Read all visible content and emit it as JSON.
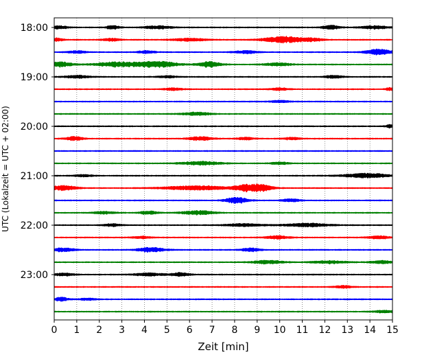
{
  "chart_data": {
    "type": "line",
    "title": "",
    "xlabel": "Zeit  [min]",
    "ylabel": "UTC (Lokalzeit = UTC + 02:00)",
    "xlim": [
      0,
      15
    ],
    "x_ticks": [
      0,
      1,
      2,
      3,
      4,
      5,
      6,
      7,
      8,
      9,
      10,
      11,
      12,
      13,
      14,
      15
    ],
    "x_tick_labels": [
      "0",
      "1",
      "2",
      "3",
      "4",
      "5",
      "6",
      "7",
      "8",
      "9",
      "10",
      "11",
      "12",
      "13",
      "14",
      "15"
    ],
    "y_tick_labels": [
      "18:00",
      "19:00",
      "20:00",
      "21:00",
      "22:00",
      "23:00"
    ],
    "grid": "vertical-dotted",
    "colors": [
      "#000000",
      "#ff0000",
      "#0000ff",
      "#008000"
    ],
    "traces": [
      {
        "start": "18:00",
        "color": "#000000",
        "bursts": [
          [
            0.2,
            0.4,
            2.0
          ],
          [
            2.6,
            0.3,
            2.6
          ],
          [
            4.6,
            0.6,
            2.2
          ],
          [
            12.3,
            0.4,
            2.8
          ],
          [
            14.2,
            0.6,
            2.2
          ]
        ]
      },
      {
        "start": "18:15",
        "color": "#ff0000",
        "bursts": [
          [
            0.1,
            0.3,
            2.4
          ],
          [
            2.5,
            0.4,
            2.0
          ],
          [
            6.0,
            0.8,
            1.8
          ],
          [
            10.2,
            0.9,
            4.6
          ],
          [
            11.5,
            0.4,
            1.8
          ]
        ]
      },
      {
        "start": "18:30",
        "color": "#0000ff",
        "bursts": [
          [
            1.0,
            0.4,
            1.8
          ],
          [
            4.1,
            0.4,
            2.0
          ],
          [
            8.5,
            0.5,
            2.0
          ],
          [
            14.4,
            0.6,
            4.0
          ]
        ]
      },
      {
        "start": "18:45",
        "color": "#008000",
        "bursts": [
          [
            0.3,
            0.5,
            3.6
          ],
          [
            2.8,
            1.0,
            3.4
          ],
          [
            4.6,
            0.9,
            4.2
          ],
          [
            6.9,
            0.5,
            4.0
          ],
          [
            9.9,
            0.6,
            2.2
          ]
        ]
      },
      {
        "start": "19:00",
        "color": "#000000",
        "bursts": [
          [
            1.0,
            0.5,
            2.2
          ],
          [
            5.0,
            0.4,
            1.6
          ],
          [
            12.4,
            0.4,
            2.0
          ]
        ]
      },
      {
        "start": "19:15",
        "color": "#ff0000",
        "bursts": [
          [
            5.3,
            0.4,
            1.6
          ],
          [
            10.0,
            0.4,
            1.8
          ],
          [
            14.9,
            0.2,
            2.2
          ]
        ]
      },
      {
        "start": "19:30",
        "color": "#0000ff",
        "bursts": [
          [
            10.0,
            0.4,
            1.6
          ]
        ]
      },
      {
        "start": "19:45",
        "color": "#008000",
        "bursts": [
          [
            6.3,
            0.6,
            2.4
          ]
        ]
      },
      {
        "start": "20:00",
        "color": "#000000",
        "bursts": [
          [
            14.9,
            0.2,
            2.2
          ]
        ]
      },
      {
        "start": "20:15",
        "color": "#ff0000",
        "bursts": [
          [
            0.9,
            0.4,
            3.0
          ],
          [
            6.5,
            0.5,
            3.0
          ],
          [
            8.5,
            0.4,
            1.6
          ],
          [
            10.5,
            0.4,
            1.6
          ]
        ]
      },
      {
        "start": "20:30",
        "color": "#0000ff",
        "bursts": []
      },
      {
        "start": "20:45",
        "color": "#008000",
        "bursts": [
          [
            6.5,
            0.9,
            2.4
          ],
          [
            10.0,
            0.4,
            1.6
          ]
        ]
      },
      {
        "start": "21:00",
        "color": "#000000",
        "bursts": [
          [
            1.3,
            0.4,
            1.6
          ],
          [
            13.9,
            1.0,
            3.2
          ]
        ]
      },
      {
        "start": "21:15",
        "color": "#ff0000",
        "bursts": [
          [
            0.4,
            0.6,
            3.4
          ],
          [
            6.3,
            1.4,
            3.2
          ],
          [
            8.5,
            0.6,
            4.4
          ],
          [
            9.2,
            0.5,
            4.0
          ]
        ]
      },
      {
        "start": "21:30",
        "color": "#0000ff",
        "bursts": [
          [
            8.1,
            0.5,
            4.6
          ],
          [
            10.5,
            0.4,
            2.0
          ]
        ]
      },
      {
        "start": "21:45",
        "color": "#008000",
        "bursts": [
          [
            2.2,
            0.5,
            1.6
          ],
          [
            4.2,
            0.4,
            2.4
          ],
          [
            6.4,
            0.7,
            2.8
          ]
        ]
      },
      {
        "start": "22:00",
        "color": "#000000",
        "bursts": [
          [
            2.6,
            0.4,
            1.8
          ],
          [
            8.4,
            0.8,
            2.0
          ],
          [
            11.2,
            1.0,
            2.4
          ]
        ]
      },
      {
        "start": "22:15",
        "color": "#ff0000",
        "bursts": [
          [
            3.9,
            0.4,
            1.6
          ],
          [
            9.9,
            0.5,
            2.4
          ],
          [
            14.4,
            0.5,
            2.0
          ]
        ]
      },
      {
        "start": "22:30",
        "color": "#0000ff",
        "bursts": [
          [
            0.4,
            0.5,
            2.6
          ],
          [
            4.3,
            0.6,
            3.4
          ],
          [
            8.7,
            0.4,
            2.6
          ]
        ]
      },
      {
        "start": "22:45",
        "color": "#008000",
        "bursts": [
          [
            9.5,
            0.7,
            2.4
          ],
          [
            12.2,
            0.8,
            1.8
          ],
          [
            14.5,
            0.5,
            2.0
          ]
        ]
      },
      {
        "start": "23:00",
        "color": "#000000",
        "bursts": [
          [
            0.4,
            0.5,
            1.8
          ],
          [
            4.2,
            0.7,
            2.0
          ],
          [
            5.6,
            0.4,
            2.6
          ]
        ]
      },
      {
        "start": "23:15",
        "color": "#ff0000",
        "bursts": [
          [
            12.8,
            0.4,
            1.8
          ]
        ]
      },
      {
        "start": "23:30",
        "color": "#0000ff",
        "bursts": [
          [
            0.3,
            0.3,
            2.8
          ],
          [
            1.5,
            0.4,
            1.4
          ]
        ]
      },
      {
        "start": "23:45",
        "color": "#008000",
        "bursts": [
          [
            14.7,
            0.5,
            1.8
          ]
        ]
      }
    ]
  }
}
